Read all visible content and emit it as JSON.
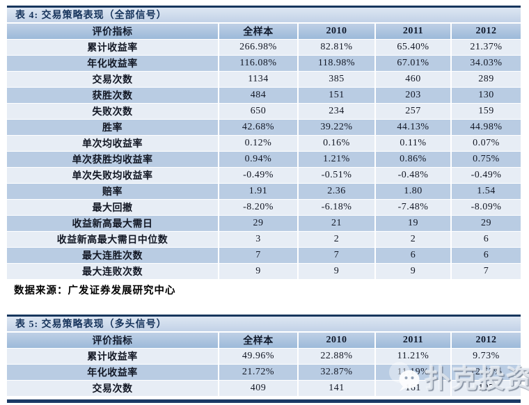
{
  "colors": {
    "navy_border": "#17365d",
    "title_bar_bg": "#cdd9ea",
    "header_row_bg": "#a9c2dd",
    "row_light": "#e7edf5",
    "row_dark": "#b9cce3",
    "watermark_gray": "#dfe4ec"
  },
  "table4": {
    "title": "表 4: 交易策略表现（全部信号）",
    "columns": [
      "评价指标",
      "全样本",
      "2010",
      "2011",
      "2012"
    ],
    "rows": [
      {
        "label": "累计收益率",
        "values": [
          "266.98%",
          "82.81%",
          "65.40%",
          "21.37%"
        ]
      },
      {
        "label": "年化收益率",
        "values": [
          "116.08%",
          "118.98%",
          "67.01%",
          "34.03%"
        ]
      },
      {
        "label": "交易次数",
        "values": [
          "1134",
          "385",
          "460",
          "289"
        ]
      },
      {
        "label": "获胜次数",
        "values": [
          "484",
          "151",
          "203",
          "130"
        ]
      },
      {
        "label": "失败次数",
        "values": [
          "650",
          "234",
          "257",
          "159"
        ]
      },
      {
        "label": "胜率",
        "values": [
          "42.68%",
          "39.22%",
          "44.13%",
          "44.98%"
        ]
      },
      {
        "label": "单次均收益率",
        "values": [
          "0.12%",
          "0.16%",
          "0.11%",
          "0.07%"
        ]
      },
      {
        "label": "单次获胜均收益率",
        "values": [
          "0.94%",
          "1.21%",
          "0.86%",
          "0.75%"
        ]
      },
      {
        "label": "单次失败均收益率",
        "values": [
          "-0.49%",
          "-0.51%",
          "-0.48%",
          "-0.49%"
        ]
      },
      {
        "label": "赔率",
        "values": [
          "1.91",
          "2.36",
          "1.80",
          "1.54"
        ]
      },
      {
        "label": "最大回撤",
        "values": [
          "-8.20%",
          "-6.18%",
          "-7.48%",
          "-8.09%"
        ]
      },
      {
        "label": "收益新高最大需日",
        "values": [
          "29",
          "21",
          "19",
          "29"
        ]
      },
      {
        "label": "收益新高最大需日中位数",
        "values": [
          "3",
          "2",
          "2",
          "6"
        ]
      },
      {
        "label": "最大连胜次数",
        "values": [
          "7",
          "7",
          "6",
          "6"
        ]
      },
      {
        "label": "最大连败次数",
        "values": [
          "9",
          "9",
          "9",
          "7"
        ]
      }
    ]
  },
  "source_note": "数据来源：广发证券发展研究中心",
  "table5": {
    "title": "表 5: 交易策略表现（多头信号）",
    "columns": [
      "评价指标",
      "全样本",
      "2010",
      "2011",
      "2012"
    ],
    "rows": [
      {
        "label": "累计收益率",
        "values": [
          "49.96%",
          "22.88%",
          "11.21%",
          "9.73%"
        ]
      },
      {
        "label": "年化收益率",
        "values": [
          "21.72%",
          "32.87%",
          "11.19%",
          "12.53%"
        ]
      },
      {
        "label": "交易次数",
        "values": [
          "409",
          "141",
          "161",
          "107"
        ]
      }
    ]
  },
  "watermark": {
    "text": "扑克投资家",
    "icon": "wechat-icon"
  }
}
